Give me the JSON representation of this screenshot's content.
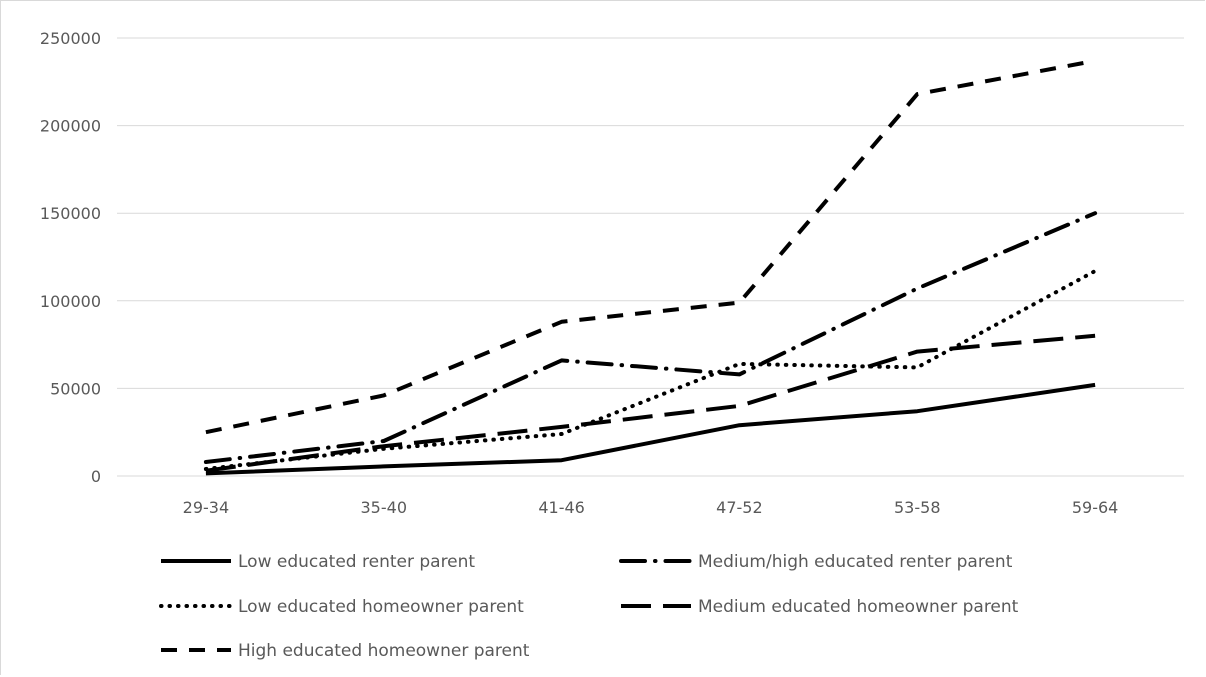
{
  "chart_data": {
    "type": "line",
    "categories": [
      "29-34",
      "35-40",
      "41-46",
      "47-52",
      "53-58",
      "59-64"
    ],
    "ylim": [
      0,
      250000
    ],
    "yticks": [
      0,
      50000,
      100000,
      150000,
      200000,
      250000
    ],
    "ytick_labels": [
      "0",
      "50000",
      "100000",
      "150000",
      "200000",
      "250000"
    ],
    "grid": true,
    "legend_position": "bottom",
    "series": [
      {
        "name": "Low educated renter parent",
        "style": "solid",
        "values": [
          1500,
          5500,
          9000,
          29000,
          37000,
          52000
        ]
      },
      {
        "name": "Medium/high educated renter parent",
        "style": "long-dash-dot",
        "values": [
          8000,
          20000,
          66000,
          58000,
          107000,
          150000
        ]
      },
      {
        "name": "Low educated homeowner parent",
        "style": "dotted",
        "values": [
          4000,
          15500,
          24000,
          64000,
          62000,
          117000
        ]
      },
      {
        "name": "Medium educated homeowner parent",
        "style": "long-dash",
        "values": [
          3000,
          17000,
          28000,
          40000,
          71000,
          80000
        ]
      },
      {
        "name": "High educated homeowner parent",
        "style": "dash",
        "values": [
          25000,
          46000,
          88000,
          99000,
          218000,
          237000
        ]
      }
    ],
    "line_color": "#000000",
    "grid_color": "#d9d9d9",
    "text_color": "#595959"
  }
}
